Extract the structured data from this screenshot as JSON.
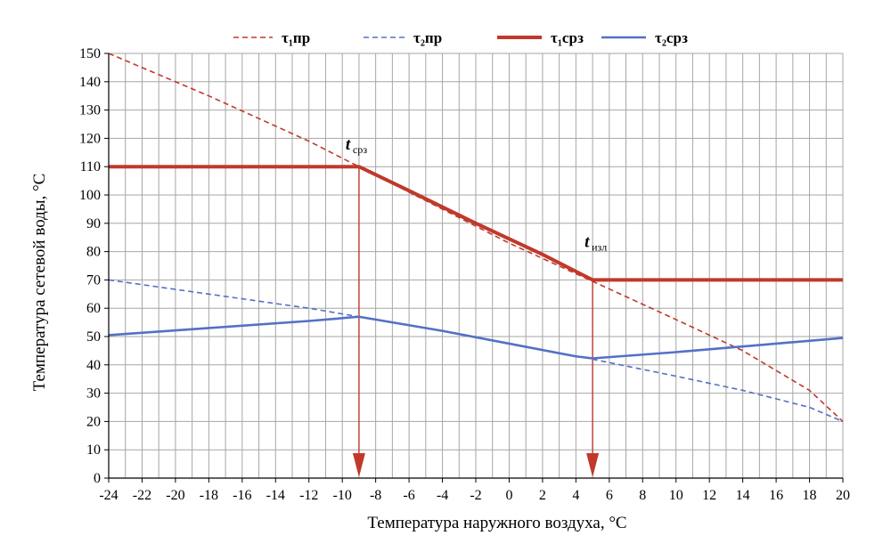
{
  "chart_data": {
    "type": "line",
    "title": "",
    "xlabel": "Температура наружного воздуха, °C",
    "ylabel": "Температура сетевой воды, °C",
    "xlim": [
      -24,
      20
    ],
    "ylim": [
      0,
      150
    ],
    "x_ticks": [
      "-24",
      "-22",
      "-20",
      "-18",
      "-16",
      "-14",
      "-12",
      "-10",
      "-8",
      "-6",
      "-4",
      "-2",
      "0",
      "2",
      "4",
      "6",
      "8",
      "10",
      "12",
      "14",
      "16",
      "18",
      "20"
    ],
    "y_ticks": [
      "0",
      "10",
      "20",
      "30",
      "40",
      "50",
      "60",
      "70",
      "80",
      "90",
      "100",
      "110",
      "120",
      "130",
      "140",
      "150"
    ],
    "grid": true,
    "legend_position": "top",
    "series": [
      {
        "name": "τ₁пр",
        "color": "#c0392b",
        "style": "dashed",
        "points": [
          [
            -24,
            150
          ],
          [
            -18,
            135
          ],
          [
            -12,
            119
          ],
          [
            -9,
            110
          ],
          [
            -6,
            101
          ],
          [
            0,
            83
          ],
          [
            5,
            69.5
          ],
          [
            10,
            56
          ],
          [
            14,
            45
          ],
          [
            18,
            31
          ],
          [
            20,
            20
          ]
        ]
      },
      {
        "name": "τ₂пр",
        "color": "#5470c6",
        "style": "dashed",
        "points": [
          [
            -24,
            70
          ],
          [
            -18,
            65
          ],
          [
            -12,
            60
          ],
          [
            -9,
            57
          ],
          [
            -4,
            52
          ],
          [
            0,
            47.5
          ],
          [
            5,
            42
          ],
          [
            10,
            36
          ],
          [
            14,
            31
          ],
          [
            18,
            25
          ],
          [
            20,
            20
          ]
        ]
      },
      {
        "name": "τ₁срз",
        "color": "#c0392b",
        "style": "solid-thick",
        "points": [
          [
            -24,
            110
          ],
          [
            -9,
            110
          ],
          [
            -6,
            101.5
          ],
          [
            -2,
            90
          ],
          [
            2,
            79
          ],
          [
            4,
            73
          ],
          [
            5,
            70
          ],
          [
            20,
            70
          ]
        ]
      },
      {
        "name": "τ₂срз",
        "color": "#5470c6",
        "style": "solid",
        "points": [
          [
            -24,
            50.5
          ],
          [
            -18,
            53
          ],
          [
            -12,
            55.5
          ],
          [
            -9,
            57
          ],
          [
            -4,
            52
          ],
          [
            0,
            47.5
          ],
          [
            4,
            43
          ],
          [
            5,
            42.3
          ],
          [
            10,
            44.5
          ],
          [
            15,
            47
          ],
          [
            20,
            49.5
          ]
        ]
      }
    ],
    "annotations": [
      {
        "main": "t",
        "sub": "срз",
        "x": -9,
        "y": 110
      },
      {
        "main": "t",
        "sub": "изл",
        "x": 5,
        "y": 70
      }
    ],
    "markers": [
      {
        "x": -9,
        "from_y": 110,
        "to_y": 0,
        "color": "#c0392b"
      },
      {
        "x": 5,
        "from_y": 70,
        "to_y": 0,
        "color": "#c0392b"
      }
    ]
  }
}
